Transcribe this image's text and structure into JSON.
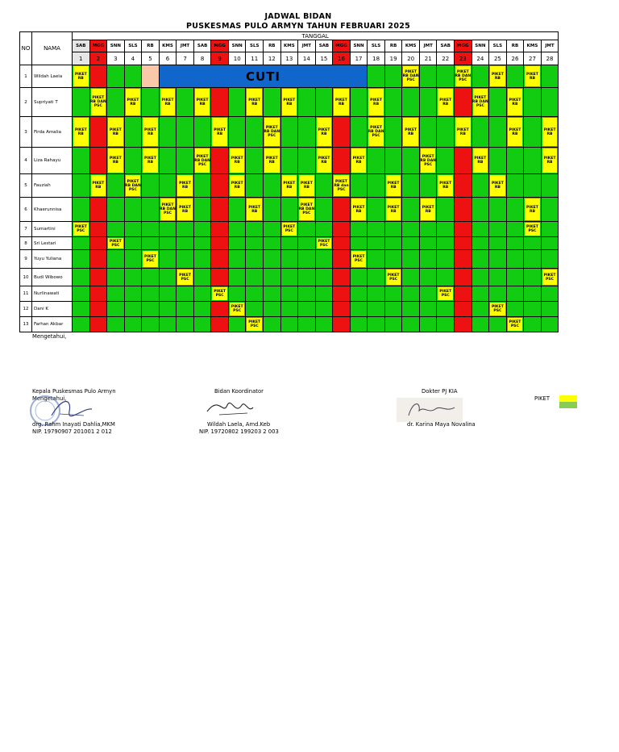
{
  "header": {
    "title": "JADWAL BIDAN",
    "subtitle": "PUSKESMAS PULO ARMYN TAHUN  FEBRUARI 2025",
    "col_no": "NO",
    "col_nama": "NAMA",
    "col_tanggal": "TANGGAL"
  },
  "days": [
    "SAB",
    "MGG",
    "SNN",
    "SLS",
    "RB",
    "KMS",
    "JMT",
    "SAB",
    "MGG",
    "SNN",
    "SLS",
    "RB",
    "KMS",
    "JMT",
    "SAB",
    "MGG",
    "SNN",
    "SLS",
    "RB",
    "KMS",
    "JMT",
    "SAB",
    "MGG",
    "SNN",
    "SLS",
    "RB",
    "KMS",
    "JMT"
  ],
  "dates": [
    "1",
    "2",
    "3",
    "4",
    "5",
    "6",
    "7",
    "8",
    "9",
    "10",
    "11",
    "12",
    "13",
    "14",
    "15",
    "16",
    "17",
    "18",
    "19",
    "20",
    "21",
    "22",
    "23",
    "24",
    "25",
    "26",
    "27",
    "28"
  ],
  "sunday_indices": [
    1,
    8,
    15,
    22
  ],
  "cuti_label": "CUTI",
  "staff": [
    {
      "no": "1",
      "name": "Wildah Laela",
      "cells": {
        "1": "PIKET RB",
        "20": "PIKET RB DAN PSC",
        "23": "PIKET RB DAN PSC",
        "25": "PIKET RB",
        "27": "PIKET RB"
      },
      "cuti_from": 6,
      "cuti_to": 17,
      "peach": [
        5
      ]
    },
    {
      "no": "2",
      "name": "Supriyati T",
      "cells": {
        "2": "PIKET RB DAN PSC",
        "4": "PIKET RB",
        "6": "PIKET RB",
        "8": "PIKET RB",
        "11": "PIKET RB",
        "13": "PIKET RB",
        "16": "PIKET RB",
        "18": "PIKET RB",
        "22": "PIKET RB",
        "24": "PIKET RB DAN PSC",
        "26": "PIKET RB"
      }
    },
    {
      "no": "3",
      "name": "Firda Amalia",
      "cells": {
        "1": "PIKET RB",
        "3": "PIKET RB",
        "5": "PIKET RB",
        "9": "PIKET RB",
        "12": "PIKET RB DAN PSC",
        "15": "PIKET RB",
        "18": "PIKET RB DAN PSC",
        "20": "PIKET RB",
        "23": "PIKET RB",
        "26": "PIKET RB",
        "28": "PIKET RB"
      }
    },
    {
      "no": "4",
      "name": "Liza Rahayu",
      "cells": {
        "3": "PIKET RB",
        "5": "PIKET RB",
        "8": "PIKET RB DAN PSC",
        "10": "PIKET RB",
        "12": "PIKET RB",
        "15": "PIKET RB",
        "17": "PIKET RB",
        "21": "PIKET RB DAN PSC",
        "24": "PIKET RB",
        "28": "PIKET RB"
      }
    },
    {
      "no": "5",
      "name": "Fauziah",
      "cells": {
        "2": "PIKET RB",
        "4": "PIKET RB DAN PSC",
        "7": "PIKET RB",
        "10": "PIKET RB",
        "13": "PIKET RB",
        "14": "PIKET RB",
        "16": "PIKET RB dan PSC",
        "19": "PIKET RB",
        "22": "PIKET RB",
        "25": "PIKET RB"
      }
    },
    {
      "no": "6",
      "name": "Khaerunnisa",
      "cells": {
        "6": "PIKET RB DAN PSC",
        "7": "PIKET RB",
        "11": "PIKET RB",
        "14": "PIKET RB DAN PSC",
        "17": "PIKET RB",
        "19": "PIKET RB",
        "21": "PIKET RB",
        "27": "PIKET RB"
      }
    },
    {
      "no": "7",
      "name": "Sumartini",
      "cells": {
        "1": "PIKET PSC",
        "13": "PIKET PSC",
        "27": "PIKET PSC"
      }
    },
    {
      "no": "8",
      "name": "Sri Lestari",
      "cells": {
        "3": "PIKET PSC",
        "15": "PIKET PSC"
      }
    },
    {
      "no": "9",
      "name": "Yuyu Yuliana",
      "cells": {
        "5": "PIKET PSC",
        "17": "PIKET PSC"
      }
    },
    {
      "no": "10",
      "name": "Budi Wibowo",
      "cells": {
        "7": "PIKET PSC",
        "19": "PIKET PSC",
        "28": "PIKET PSC"
      }
    },
    {
      "no": "11",
      "name": "Nurlinawati",
      "cells": {
        "9": "PIKET PSC",
        "22": "PIKET PSC"
      }
    },
    {
      "no": "12",
      "name": "Dani K",
      "cells": {
        "10": "PIKET PSC",
        "25": "PIKET PSC"
      }
    },
    {
      "no": "13",
      "name": "Farhan Akbar",
      "cells": {
        "11": "PIKET PSC",
        "26": "PIKET PSC"
      }
    }
  ],
  "footer": {
    "mengetahui": "Mengetahui,",
    "kepala_title": "Kepala Puskesmas Pulo Armyn",
    "kepala_sub": "Mengetahui,",
    "kepala_name": "drg. Rahm Inayati Dahlia,MKM",
    "kepala_nip": "NIP. 19790907 201001 2 012",
    "koord_title": "Bidan Koordinator",
    "koord_name": "Wildah Laela, Amd.Keb",
    "koord_nip": "NIP. 19720802 199203 2 003",
    "dokter_title": "Dokter PJ KIA",
    "dokter_name": "dr. Karina Maya Novalina",
    "legend_label": "PIKET"
  },
  "colors": {
    "green": "#11cc11",
    "red": "#ee1111",
    "yellow": "#ffff00",
    "blue": "#1166cc",
    "peach": "#f8c8a8",
    "legend_green": "#88cc55"
  }
}
